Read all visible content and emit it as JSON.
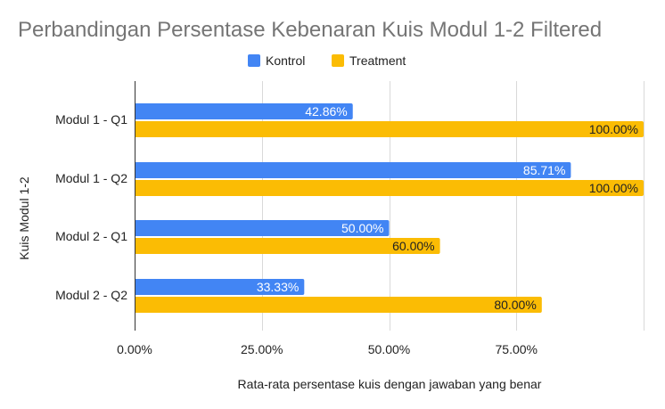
{
  "chart_data": {
    "type": "bar",
    "orientation": "horizontal",
    "title": "Perbandingan Persentase Kebenaran Kuis Modul 1-2 Filtered",
    "xlabel": "Rata-rata persentase kuis dengan jawaban yang benar",
    "ylabel": "Kuis Modul 1-2",
    "categories": [
      "Modul 1 - Q1",
      "Modul 1 - Q2",
      "Modul 2 - Q1",
      "Modul 2 - Q2"
    ],
    "series": [
      {
        "name": "Kontrol",
        "color": "#4285f4",
        "values": [
          42.86,
          85.71,
          50.0,
          33.33
        ],
        "labels": [
          "42.86%",
          "85.71%",
          "50.00%",
          "33.33%"
        ]
      },
      {
        "name": "Treatment",
        "color": "#fbbc04",
        "values": [
          100,
          100,
          60,
          80
        ],
        "labels": [
          "100.00%",
          "100.00%",
          "60.00%",
          "80.00%"
        ]
      }
    ],
    "xlim": [
      0,
      100
    ],
    "xticks": [
      0,
      25,
      50,
      75
    ],
    "xtick_labels": [
      "0.00%",
      "25.00%",
      "50.00%",
      "75.00%"
    ],
    "grid": true,
    "legend": "top-center"
  }
}
